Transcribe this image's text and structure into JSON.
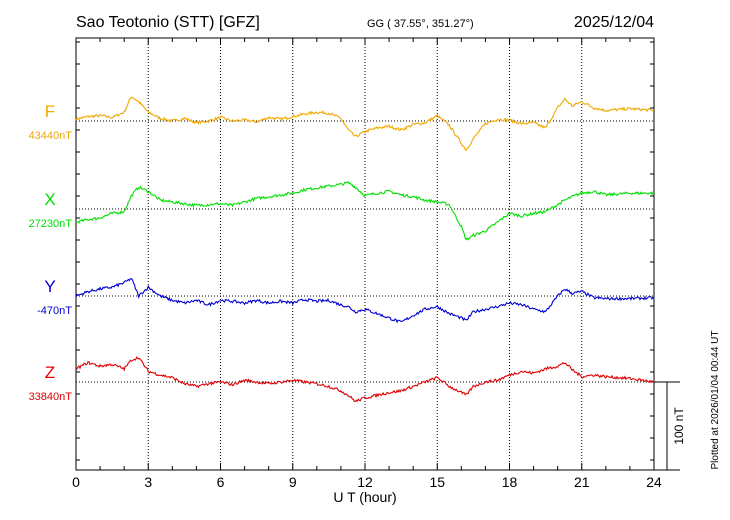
{
  "header": {
    "station": "Sao Teotonio (STT)  [GFZ]",
    "coords": "GG ( 37.55°, 351.27°)",
    "date": "2025/12/04"
  },
  "plotted_note": "Plotted at 2026/01/04 00:44 UT",
  "colors": {
    "F": "#f0a800",
    "X": "#00e000",
    "Y": "#0000d0",
    "Z": "#e00000",
    "axis": "#000000"
  },
  "chart_data": {
    "type": "line",
    "title": "",
    "xlabel": "U T (hour)",
    "xlim": [
      0,
      24
    ],
    "xticks": [
      "0",
      "3",
      "6",
      "9",
      "12",
      "15",
      "18",
      "21",
      "24"
    ],
    "scale_bar": {
      "label": "100 nT",
      "value_nT": 100
    },
    "grid": true,
    "series": [
      {
        "name": "F",
        "baseline_label": "43440nT",
        "baseline_nT": 43440,
        "x": [
          0,
          0.5,
          1,
          1.5,
          2,
          2.3,
          2.6,
          3,
          3.5,
          4,
          4.5,
          5,
          5.5,
          6,
          6.5,
          7,
          7.5,
          8,
          8.5,
          9,
          9.5,
          10,
          10.5,
          11,
          11.3,
          11.6,
          12,
          12.5,
          13,
          13.5,
          14,
          14.5,
          15,
          15.5,
          16,
          16.2,
          16.5,
          17,
          17.5,
          18,
          18.5,
          19,
          19.5,
          20,
          20.3,
          20.6,
          21,
          21.5,
          22,
          23,
          24
        ],
        "y": [
          2,
          5,
          6,
          4,
          10,
          28,
          22,
          10,
          3,
          0,
          3,
          -2,
          0,
          4,
          0,
          1,
          -1,
          4,
          2,
          5,
          8,
          10,
          9,
          3,
          -10,
          -18,
          -12,
          -8,
          -6,
          -10,
          -4,
          -2,
          6,
          -5,
          -25,
          -33,
          -20,
          -3,
          2,
          1,
          -3,
          -2,
          -8,
          15,
          25,
          17,
          22,
          15,
          12,
          14,
          12
        ]
      },
      {
        "name": "X",
        "baseline_label": "27230nT",
        "baseline_nT": 27230,
        "x": [
          0,
          0.5,
          1,
          1.5,
          2,
          2.3,
          2.6,
          3,
          3.5,
          4,
          4.5,
          5,
          5.5,
          6,
          6.5,
          7,
          7.5,
          8,
          8.5,
          9,
          9.5,
          10,
          10.5,
          11,
          11.3,
          11.6,
          12,
          12.5,
          13,
          13.5,
          14,
          14.5,
          15,
          15.5,
          16,
          16.2,
          16.5,
          17,
          17.5,
          18,
          18.5,
          19,
          19.5,
          20,
          20.3,
          20.6,
          21,
          21.5,
          22,
          23,
          24
        ],
        "y": [
          -15,
          -12,
          -10,
          -5,
          -3,
          15,
          25,
          20,
          10,
          8,
          6,
          4,
          5,
          6,
          4,
          8,
          12,
          14,
          16,
          18,
          22,
          24,
          26,
          28,
          30,
          25,
          15,
          18,
          20,
          16,
          14,
          10,
          8,
          5,
          -20,
          -35,
          -30,
          -25,
          -15,
          -5,
          -8,
          -5,
          -3,
          5,
          10,
          14,
          18,
          20,
          16,
          18,
          18
        ]
      },
      {
        "name": "Y",
        "baseline_label": "-470nT",
        "baseline_nT": -470,
        "x": [
          0,
          0.5,
          1,
          1.5,
          2,
          2.3,
          2.6,
          3,
          3.5,
          4,
          4.5,
          5,
          5.5,
          6,
          6.5,
          7,
          7.5,
          8,
          8.5,
          9,
          9.5,
          10,
          10.5,
          11,
          11.3,
          11.6,
          12,
          12.5,
          13,
          13.5,
          14,
          14.5,
          15,
          15.5,
          16,
          16.2,
          16.5,
          17,
          17.5,
          18,
          18.5,
          19,
          19.5,
          20,
          20.3,
          20.6,
          21,
          21.5,
          22,
          23,
          24
        ],
        "y": [
          0,
          5,
          8,
          10,
          15,
          20,
          0,
          10,
          0,
          -5,
          -8,
          -5,
          -10,
          -5,
          -6,
          -8,
          -5,
          -8,
          -6,
          -8,
          -4,
          -6,
          -5,
          -10,
          -12,
          -18,
          -15,
          -20,
          -25,
          -30,
          -22,
          -15,
          -12,
          -20,
          -25,
          -28,
          -18,
          -15,
          -12,
          -8,
          -10,
          -15,
          -18,
          0,
          8,
          3,
          5,
          -2,
          -3,
          -3,
          -2
        ]
      },
      {
        "name": "Z",
        "baseline_label": "33840nT",
        "baseline_nT": 33840,
        "x": [
          0,
          0.5,
          1,
          1.5,
          2,
          2.3,
          2.6,
          3,
          3.5,
          4,
          4.5,
          5,
          5.5,
          6,
          6.5,
          7,
          7.5,
          8,
          8.5,
          9,
          9.5,
          10,
          10.5,
          11,
          11.3,
          11.6,
          12,
          12.5,
          13,
          13.5,
          14,
          14.5,
          15,
          15.5,
          16,
          16.2,
          16.5,
          17,
          17.5,
          18,
          18.5,
          19,
          19.5,
          20,
          20.3,
          20.6,
          21,
          21.5,
          22,
          23,
          24
        ],
        "y": [
          15,
          22,
          18,
          20,
          15,
          25,
          28,
          12,
          8,
          5,
          -2,
          -5,
          -2,
          0,
          -3,
          2,
          0,
          -2,
          0,
          2,
          0,
          -2,
          -5,
          -10,
          -15,
          -22,
          -18,
          -15,
          -12,
          -10,
          -5,
          0,
          5,
          -5,
          -12,
          -15,
          -5,
          0,
          2,
          8,
          12,
          10,
          15,
          18,
          22,
          14,
          6,
          8,
          6,
          4,
          0
        ]
      }
    ]
  }
}
